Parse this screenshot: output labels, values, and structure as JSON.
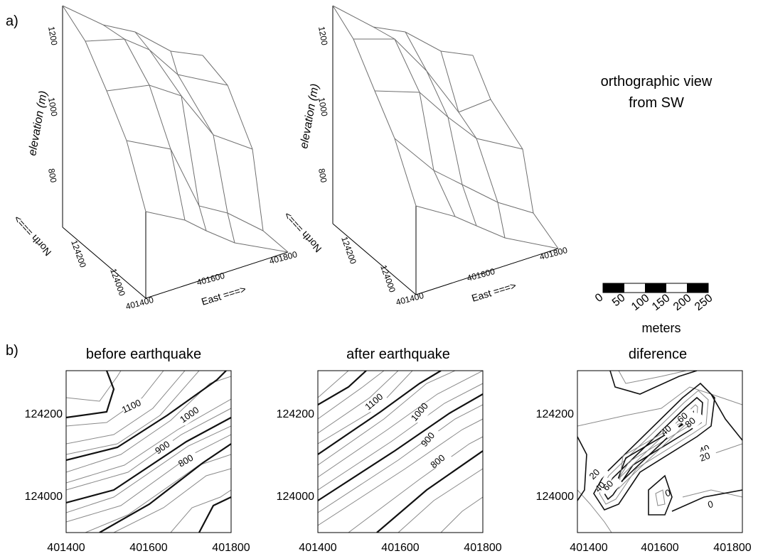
{
  "panel_a": {
    "label": "a)",
    "view_note_line1": "orthographic view",
    "view_note_line2": "from SW",
    "z_label": "elevation (m)",
    "z_ticks": [
      "1200",
      "1000",
      "800"
    ],
    "north_label": "North ===>",
    "north_ticks": [
      "124200",
      "124000"
    ],
    "east_label": "East ===>",
    "east_ticks": [
      "401400",
      "401600",
      "401800"
    ]
  },
  "scale_bar": {
    "ticks": [
      "0",
      "50",
      "100",
      "150",
      "200",
      "250"
    ],
    "unit": "meters"
  },
  "panel_b": {
    "label": "b)",
    "maps": [
      {
        "title": "before earthquake",
        "contour_labels": [
          "1100",
          "1000",
          "900",
          "800"
        ],
        "y_ticks": [
          "124200",
          "124000"
        ],
        "x_ticks": [
          "401400",
          "401600",
          "401800"
        ]
      },
      {
        "title": "after earthquake",
        "contour_labels": [
          "1100",
          "1000",
          "900",
          "800"
        ],
        "y_ticks": [
          "124200",
          "124000"
        ],
        "x_ticks": [
          "401400",
          "401600",
          "401800"
        ]
      },
      {
        "title": "diference",
        "contour_labels": [
          "40",
          "60",
          "80",
          "40",
          "20",
          "20",
          "40",
          "60",
          "0",
          "0"
        ],
        "y_ticks": [
          "124200",
          "124000"
        ],
        "x_ticks": [
          "401400",
          "401600",
          "401800"
        ]
      }
    ]
  }
}
